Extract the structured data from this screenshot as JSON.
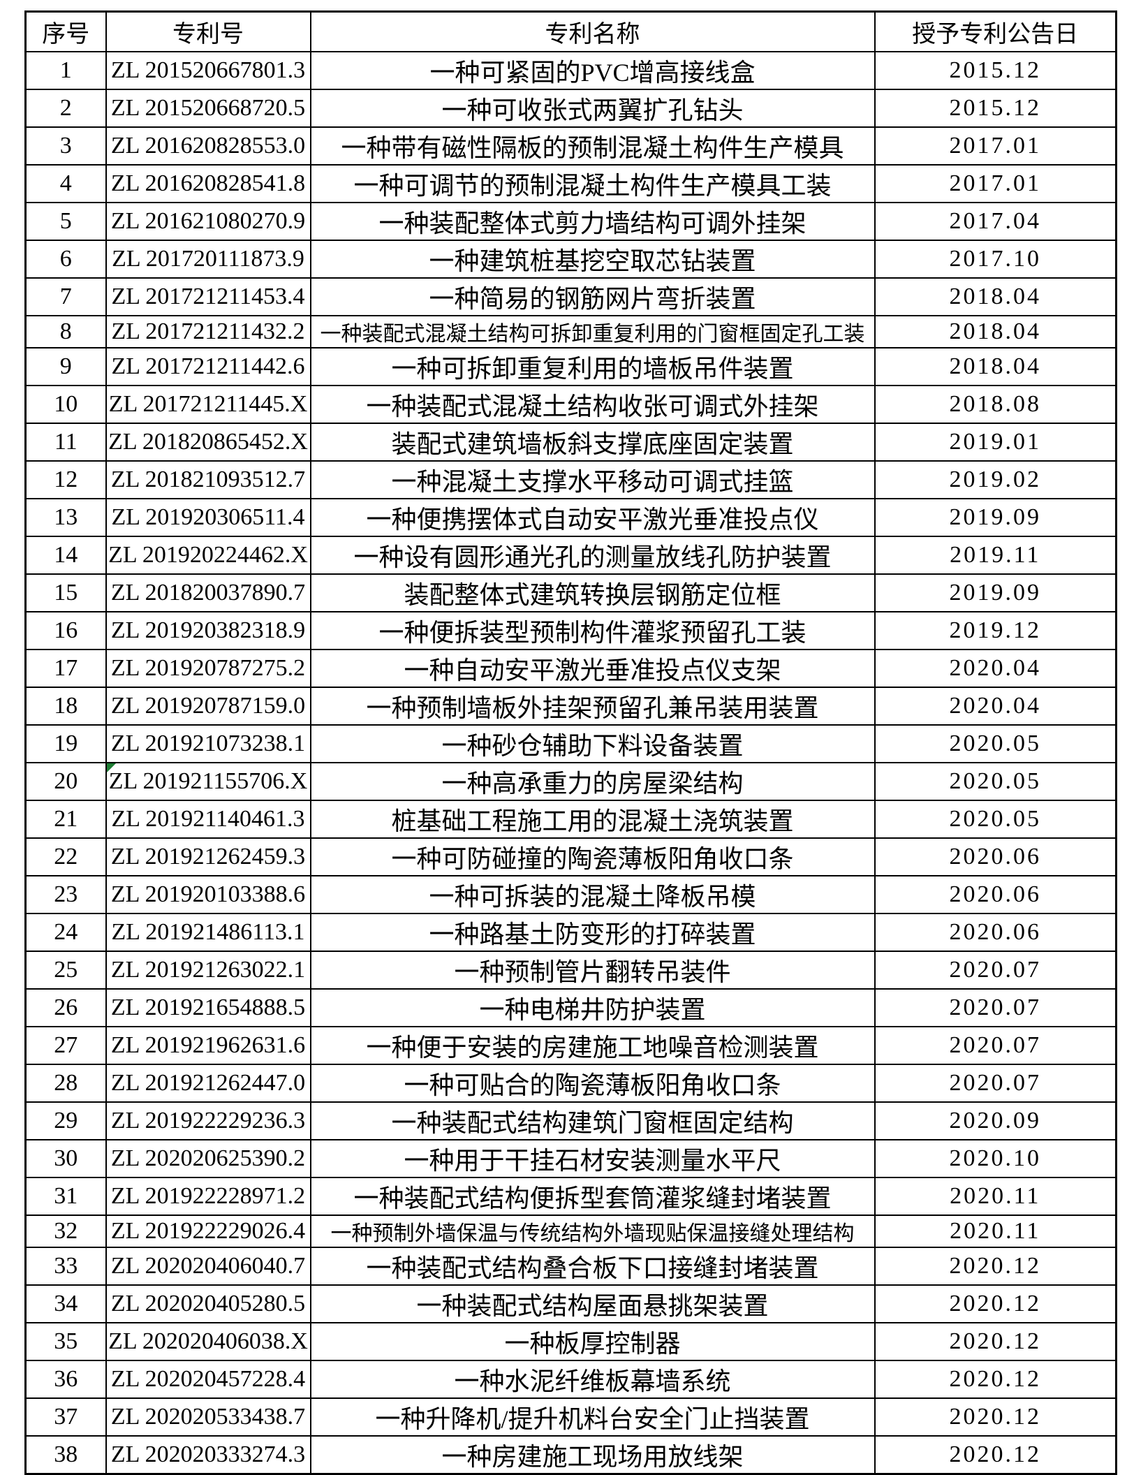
{
  "colors": {
    "background": "#ffffff",
    "text": "#000000",
    "border": "#000000",
    "marker_green": "#1e7e34"
  },
  "table": {
    "header": {
      "no": "序号",
      "patent_no": "专利号",
      "name": "专利名称",
      "grant_date": "授予专利公告日"
    },
    "rows": [
      {
        "no": "1",
        "patent_no": "ZL 201520667801.3",
        "name": "一种可紧固的PVC增高接线盒",
        "grant_date": "2015.12"
      },
      {
        "no": "2",
        "patent_no": "ZL 201520668720.5",
        "name": "一种可收张式两翼扩孔钻头",
        "grant_date": "2015.12"
      },
      {
        "no": "3",
        "patent_no": "ZL 201620828553.0",
        "name": "一种带有磁性隔板的预制混凝土构件生产模具",
        "grant_date": "2017.01"
      },
      {
        "no": "4",
        "patent_no": "ZL 201620828541.8",
        "name": "一种可调节的预制混凝土构件生产模具工装",
        "grant_date": "2017.01"
      },
      {
        "no": "5",
        "patent_no": "ZL 201621080270.9",
        "name": "一种装配整体式剪力墙结构可调外挂架",
        "grant_date": "2017.04"
      },
      {
        "no": "6",
        "patent_no": "ZL 201720111873.9",
        "name": "一种建筑桩基挖空取芯钻装置",
        "grant_date": "2017.10"
      },
      {
        "no": "7",
        "patent_no": "ZL 201721211453.4",
        "name": "一种简易的钢筋网片弯折装置",
        "grant_date": "2018.04"
      },
      {
        "no": "8",
        "patent_no": "ZL 201721211432.2",
        "name": "一种装配式混凝土结构可拆卸重复利用的门窗框固定孔工装",
        "grant_date": "2018.04"
      },
      {
        "no": "9",
        "patent_no": "ZL 201721211442.6",
        "name": "一种可拆卸重复利用的墙板吊件装置",
        "grant_date": "2018.04"
      },
      {
        "no": "10",
        "patent_no": "ZL 201721211445.X",
        "name": "一种装配式混凝土结构收张可调式外挂架",
        "grant_date": "2018.08"
      },
      {
        "no": "11",
        "patent_no": "ZL 201820865452.X",
        "name": "装配式建筑墙板斜支撑底座固定装置",
        "grant_date": "2019.01"
      },
      {
        "no": "12",
        "patent_no": "ZL 201821093512.7",
        "name": "一种混凝土支撑水平移动可调式挂篮",
        "grant_date": "2019.02"
      },
      {
        "no": "13",
        "patent_no": "ZL 201920306511.4",
        "name": "一种便携摆体式自动安平激光垂准投点仪",
        "grant_date": "2019.09"
      },
      {
        "no": "14",
        "patent_no": "ZL 201920224462.X",
        "name": "一种设有圆形通光孔的测量放线孔防护装置",
        "grant_date": "2019.11"
      },
      {
        "no": "15",
        "patent_no": "ZL 201820037890.7",
        "name": "装配整体式建筑转换层钢筋定位框",
        "grant_date": "2019.09"
      },
      {
        "no": "16",
        "patent_no": "ZL 201920382318.9",
        "name": "一种便拆装型预制构件灌浆预留孔工装",
        "grant_date": "2019.12"
      },
      {
        "no": "17",
        "patent_no": "ZL 201920787275.2",
        "name": "一种自动安平激光垂准投点仪支架",
        "grant_date": "2020.04"
      },
      {
        "no": "18",
        "patent_no": "ZL 201920787159.0",
        "name": "一种预制墙板外挂架预留孔兼吊装用装置",
        "grant_date": "2020.04"
      },
      {
        "no": "19",
        "patent_no": "ZL 201921073238.1",
        "name": "一种砂仓辅助下料设备装置",
        "grant_date": "2020.05"
      },
      {
        "no": "20",
        "patent_no": "ZL 201921155706.X",
        "name": "一种高承重力的房屋梁结构",
        "grant_date": "2020.05",
        "marker": "green-triangle"
      },
      {
        "no": "21",
        "patent_no": "ZL 201921140461.3",
        "name": "桩基础工程施工用的混凝土浇筑装置",
        "grant_date": "2020.05"
      },
      {
        "no": "22",
        "patent_no": "ZL 201921262459.3",
        "name": "一种可防碰撞的陶瓷薄板阳角收口条",
        "grant_date": "2020.06"
      },
      {
        "no": "23",
        "patent_no": "ZL 201920103388.6",
        "name": "一种可拆装的混凝土降板吊模",
        "grant_date": "2020.06"
      },
      {
        "no": "24",
        "patent_no": "ZL 201921486113.1",
        "name": "一种路基土防变形的打碎装置",
        "grant_date": "2020.06"
      },
      {
        "no": "25",
        "patent_no": "ZL 201921263022.1",
        "name": "一种预制管片翻转吊装件",
        "grant_date": "2020.07"
      },
      {
        "no": "26",
        "patent_no": "ZL 201921654888.5",
        "name": "一种电梯井防护装置",
        "grant_date": "2020.07"
      },
      {
        "no": "27",
        "patent_no": "ZL 201921962631.6",
        "name": "一种便于安装的房建施工地噪音检测装置",
        "grant_date": "2020.07"
      },
      {
        "no": "28",
        "patent_no": "ZL 201921262447.0",
        "name": "一种可贴合的陶瓷薄板阳角收口条",
        "grant_date": "2020.07"
      },
      {
        "no": "29",
        "patent_no": "ZL 201922229236.3",
        "name": "一种装配式结构建筑门窗框固定结构",
        "grant_date": "2020.09"
      },
      {
        "no": "30",
        "patent_no": "ZL 202020625390.2",
        "name": "一种用于干挂石材安装测量水平尺",
        "grant_date": "2020.10"
      },
      {
        "no": "31",
        "patent_no": "ZL 201922228971.2",
        "name": "一种装配式结构便拆型套筒灌浆缝封堵装置",
        "grant_date": "2020.11"
      },
      {
        "no": "32",
        "patent_no": "ZL 201922229026.4",
        "name": "一种预制外墙保温与传统结构外墙现贴保温接缝处理结构",
        "grant_date": "2020.11"
      },
      {
        "no": "33",
        "patent_no": "ZL 202020406040.7",
        "name": "一种装配式结构叠合板下口接缝封堵装置",
        "grant_date": "2020.12"
      },
      {
        "no": "34",
        "patent_no": "ZL 202020405280.5",
        "name": "一种装配式结构屋面悬挑架装置",
        "grant_date": "2020.12"
      },
      {
        "no": "35",
        "patent_no": "ZL 202020406038.X",
        "name": "一种板厚控制器",
        "grant_date": "2020.12"
      },
      {
        "no": "36",
        "patent_no": "ZL 202020457228.4",
        "name": "一种水泥纤维板幕墙系统",
        "grant_date": "2020.12"
      },
      {
        "no": "37",
        "patent_no": "ZL 202020533438.7",
        "name": "一种升降机/提升机料台安全门止挡装置",
        "grant_date": "2020.12"
      },
      {
        "no": "38",
        "patent_no": "ZL 202020333274.3",
        "name": "一种房建施工现场用放线架",
        "grant_date": "2020.12"
      }
    ]
  }
}
